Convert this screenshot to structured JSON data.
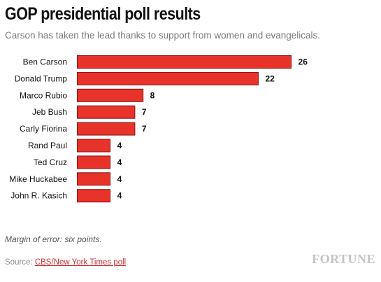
{
  "header": {
    "title": "GOP presidential poll results",
    "subtitle": "Carson has taken the lead thanks to support from women and evangelicals."
  },
  "footer": {
    "note": "Margin of error: six points.",
    "source_prefix": "Source: ",
    "source_link": "CBS/New York Times poll",
    "logo": "FORTUNE"
  },
  "colors": {
    "bar": "#e8332a",
    "bar_stroke": "#8a1010"
  },
  "chart_data": {
    "type": "bar",
    "orientation": "horizontal",
    "title": "GOP presidential poll results",
    "subtitle": "Carson has taken the lead thanks to support from women and evangelicals.",
    "xlabel": "",
    "ylabel": "",
    "categories": [
      "Ben Carson",
      "Donald Trump",
      "Marco Rubio",
      "Jeb Bush",
      "Carly Fiorina",
      "Rand Paul",
      "Ted Cruz",
      "Mike Huckabee",
      "John R. Kasich"
    ],
    "values": [
      26,
      22,
      8,
      7,
      7,
      4,
      4,
      4,
      4
    ],
    "data_labels": [
      "26",
      "22",
      "8",
      "7",
      "7",
      "4",
      "4",
      "4",
      "4"
    ],
    "grid": false,
    "legend": "none"
  }
}
